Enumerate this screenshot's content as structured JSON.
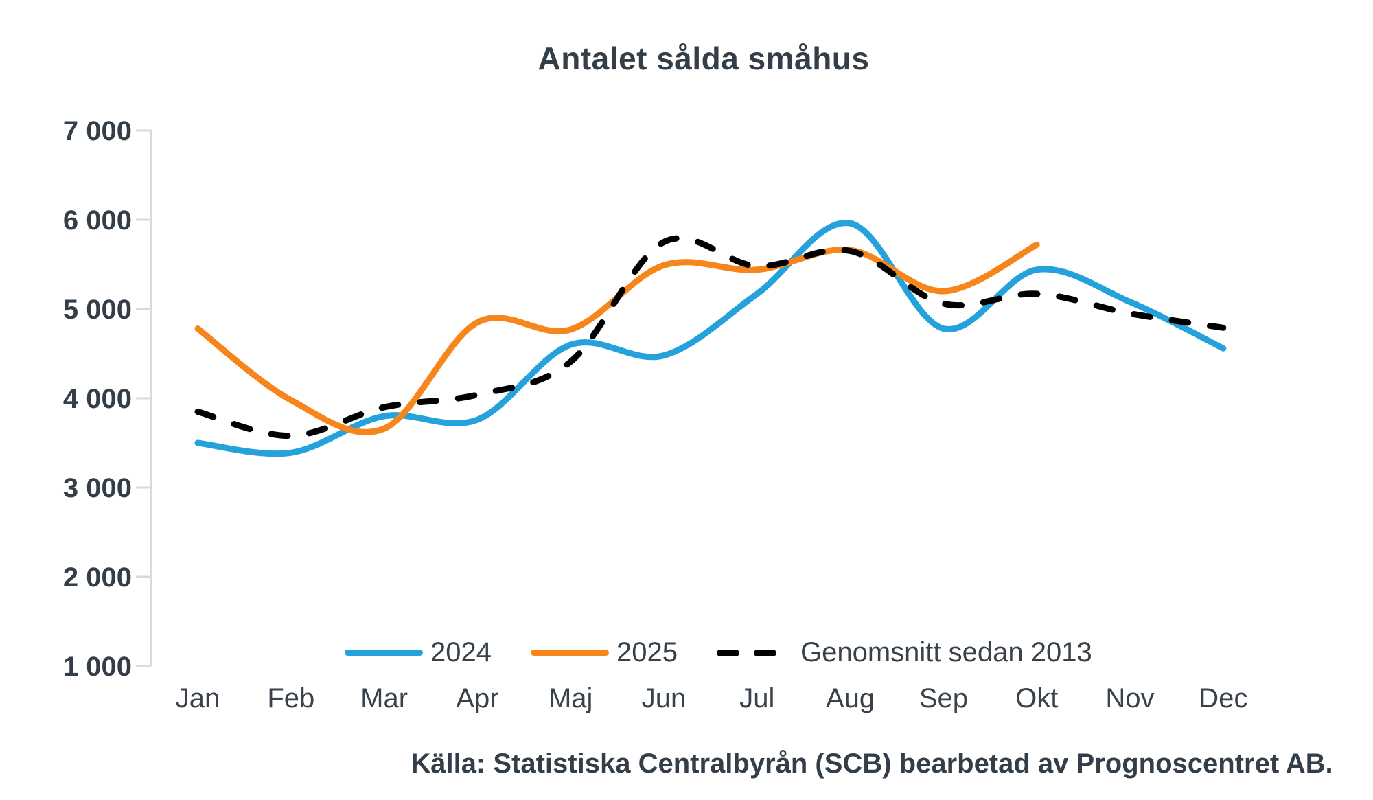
{
  "title": "Antalet sålda småhus",
  "source": "Källa: Statistiska Centralbyrån (SCB) bearbetad av Prognoscentret AB.",
  "colors": {
    "series_2024": "#25a2db",
    "series_2025": "#f6861c",
    "series_average": "#000000",
    "text_dark": "#333e48",
    "text_label": "#39424b",
    "axis": "#d7dbde"
  },
  "chart_data": {
    "type": "line",
    "title": "Antalet sålda småhus",
    "categories": [
      "Jan",
      "Feb",
      "Mar",
      "Apr",
      "Maj",
      "Jun",
      "Jul",
      "Aug",
      "Sep",
      "Okt",
      "Nov",
      "Dec"
    ],
    "series": [
      {
        "name": "2024",
        "color": "#25a2db",
        "style": "solid",
        "values": [
          3500,
          3390,
          3800,
          3760,
          4600,
          4480,
          5170,
          5960,
          4780,
          5440,
          5080,
          4560
        ]
      },
      {
        "name": "2025",
        "color": "#f6861c",
        "style": "solid",
        "values": [
          4780,
          3980,
          3660,
          4850,
          4770,
          5490,
          5440,
          5660,
          5200,
          5720,
          null,
          null
        ]
      },
      {
        "name": "Genomsnitt sedan 2013",
        "color": "#000000",
        "style": "dashed",
        "values": [
          3850,
          3580,
          3900,
          4040,
          4410,
          5750,
          5480,
          5650,
          5060,
          5170,
          4950,
          4790
        ]
      }
    ],
    "ylim": [
      1000,
      7000
    ],
    "ytick_step": 1000,
    "ytick_values": [
      1000,
      2000,
      3000,
      4000,
      5000,
      6000,
      7000
    ],
    "ytick_labels": [
      "1 000",
      "2 000",
      "3 000",
      "4 000",
      "5 000",
      "6 000",
      "7 000"
    ],
    "xlabel": "",
    "ylabel": "",
    "grid": false,
    "legend_position": "bottom"
  }
}
